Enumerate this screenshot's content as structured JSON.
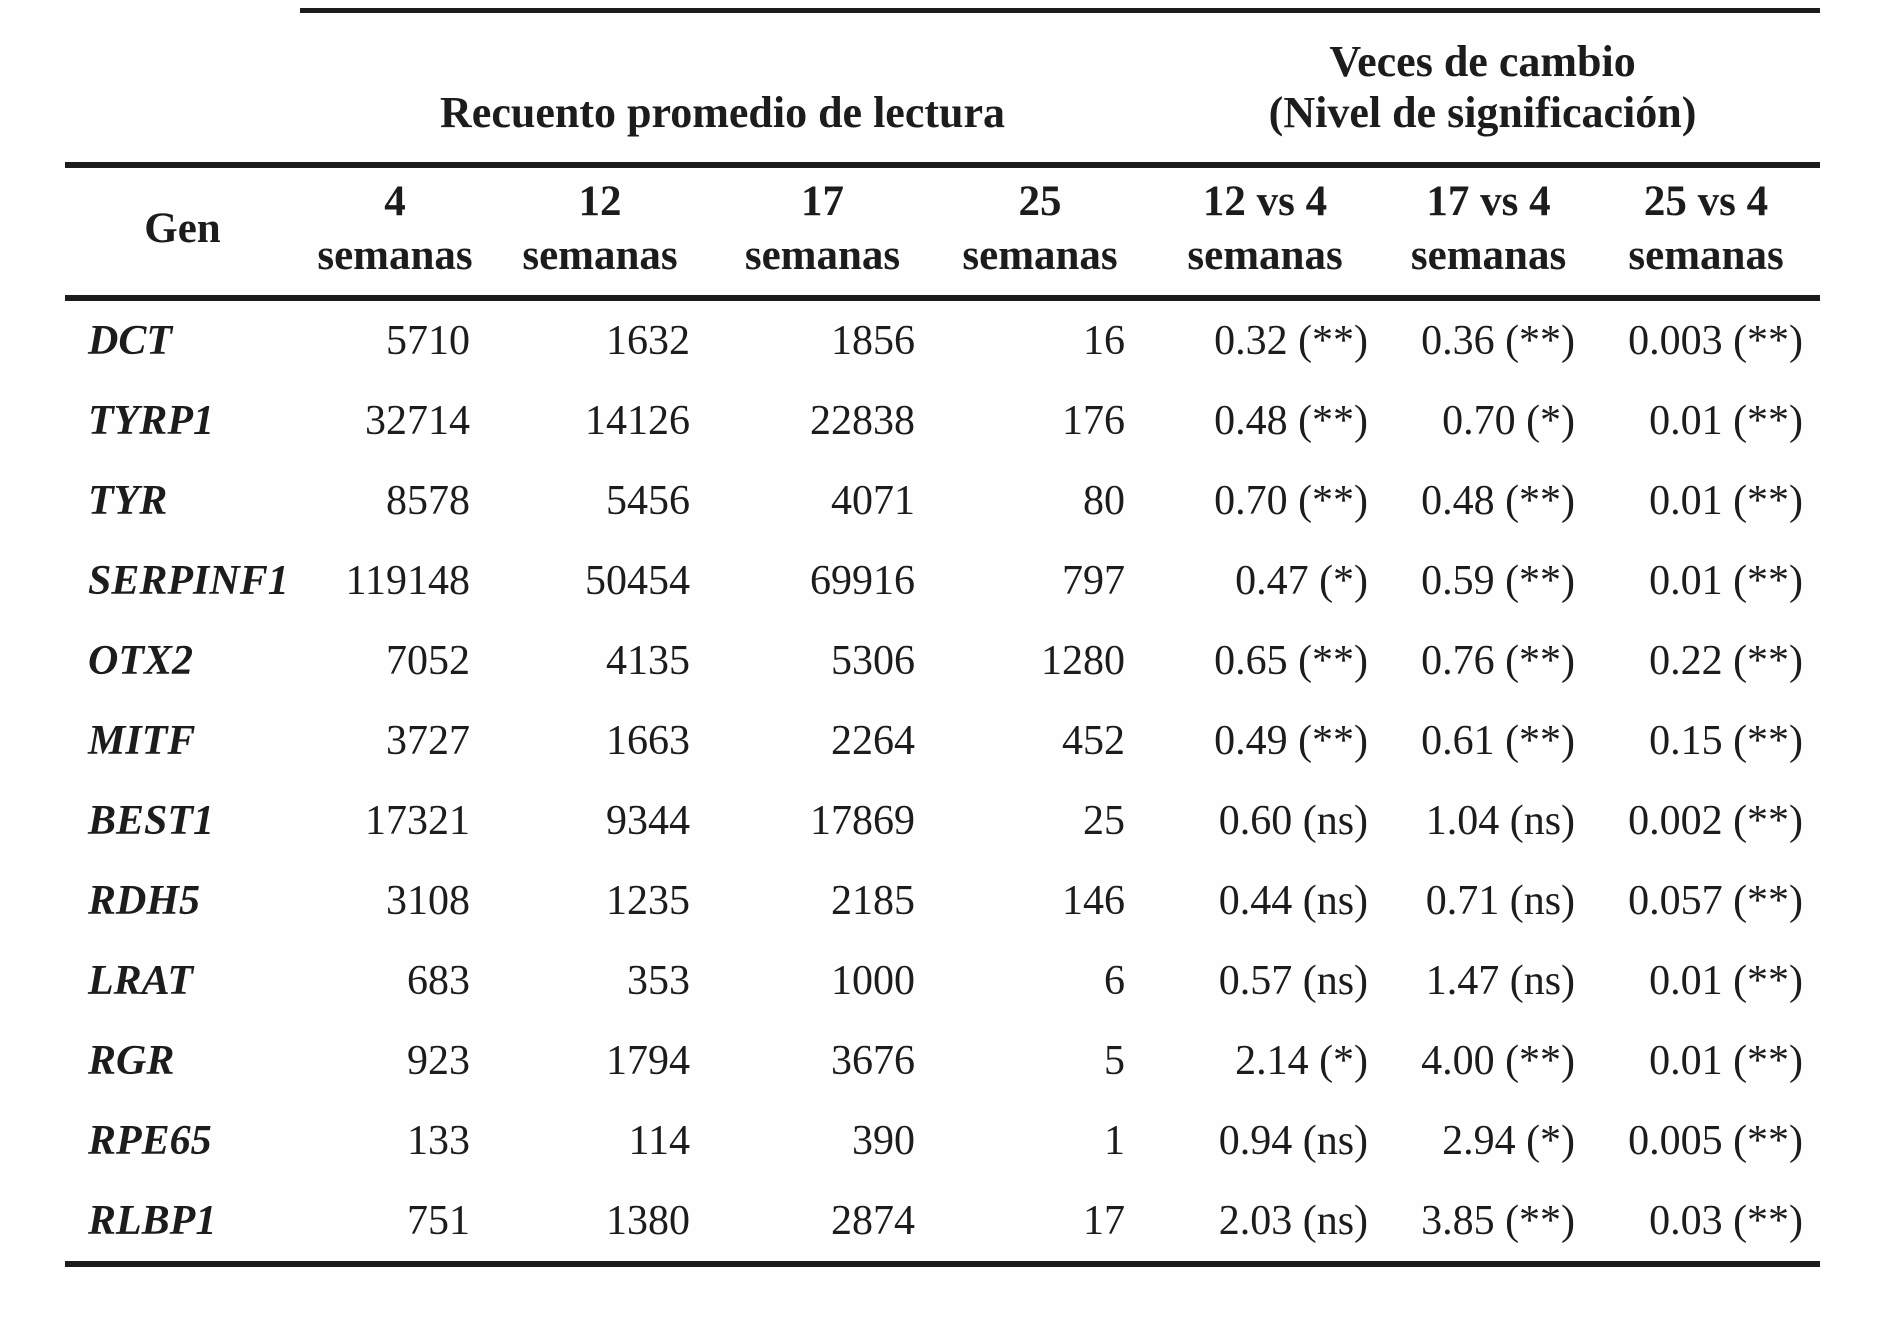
{
  "table": {
    "title_hidden": "",
    "group_headers": {
      "recuento": "Recuento promedio de lectura",
      "veces_line1": "Veces de cambio",
      "veces_line2": "(Nivel de significación)"
    },
    "columns": [
      {
        "line1": "",
        "line2": "Gen"
      },
      {
        "line1": "4",
        "line2": "semanas"
      },
      {
        "line1": "12",
        "line2": "semanas"
      },
      {
        "line1": "17",
        "line2": "semanas"
      },
      {
        "line1": "25",
        "line2": "semanas"
      },
      {
        "line1": "12 vs 4",
        "line2": "semanas"
      },
      {
        "line1": "17 vs 4",
        "line2": "semanas"
      },
      {
        "line1": "25 vs 4",
        "line2": "semanas"
      }
    ],
    "rows": [
      {
        "gen": "DCT",
        "values": [
          "5710",
          "1632",
          "1856",
          "16",
          "0.32 (**)",
          "0.36 (**)",
          "0.003 (**)"
        ]
      },
      {
        "gen": "TYRP1",
        "values": [
          "32714",
          "14126",
          "22838",
          "176",
          "0.48 (**)",
          "0.70 (*)",
          "0.01 (**)"
        ]
      },
      {
        "gen": "TYR",
        "values": [
          "8578",
          "5456",
          "4071",
          "80",
          "0.70 (**)",
          "0.48 (**)",
          "0.01 (**)"
        ]
      },
      {
        "gen": "SERPINF1",
        "values": [
          "119148",
          "50454",
          "69916",
          "797",
          "0.47 (*)",
          "0.59 (**)",
          "0.01 (**)"
        ]
      },
      {
        "gen": "OTX2",
        "values": [
          "7052",
          "4135",
          "5306",
          "1280",
          "0.65 (**)",
          "0.76 (**)",
          "0.22 (**)"
        ]
      },
      {
        "gen": "MITF",
        "values": [
          "3727",
          "1663",
          "2264",
          "452",
          "0.49 (**)",
          "0.61 (**)",
          "0.15 (**)"
        ]
      },
      {
        "gen": "BEST1",
        "values": [
          "17321",
          "9344",
          "17869",
          "25",
          "0.60 (ns)",
          "1.04 (ns)",
          "0.002 (**)"
        ]
      },
      {
        "gen": "RDH5",
        "values": [
          "3108",
          "1235",
          "2185",
          "146",
          "0.44 (ns)",
          "0.71 (ns)",
          "0.057 (**)"
        ]
      },
      {
        "gen": "LRAT",
        "values": [
          "683",
          "353",
          "1000",
          "6",
          "0.57 (ns)",
          "1.47 (ns)",
          "0.01 (**)"
        ]
      },
      {
        "gen": "RGR",
        "values": [
          "923",
          "1794",
          "3676",
          "5",
          "2.14 (*)",
          "4.00 (**)",
          "0.01 (**)"
        ]
      },
      {
        "gen": "RPE65",
        "values": [
          "133",
          "114",
          "390",
          "1",
          "0.94 (ns)",
          "2.94 (*)",
          "0.005 (**)"
        ]
      },
      {
        "gen": "RLBP1",
        "values": [
          "751",
          "1380",
          "2874",
          "17",
          "2.03 (ns)",
          "3.85 (**)",
          "0.03 (**)"
        ]
      }
    ]
  }
}
